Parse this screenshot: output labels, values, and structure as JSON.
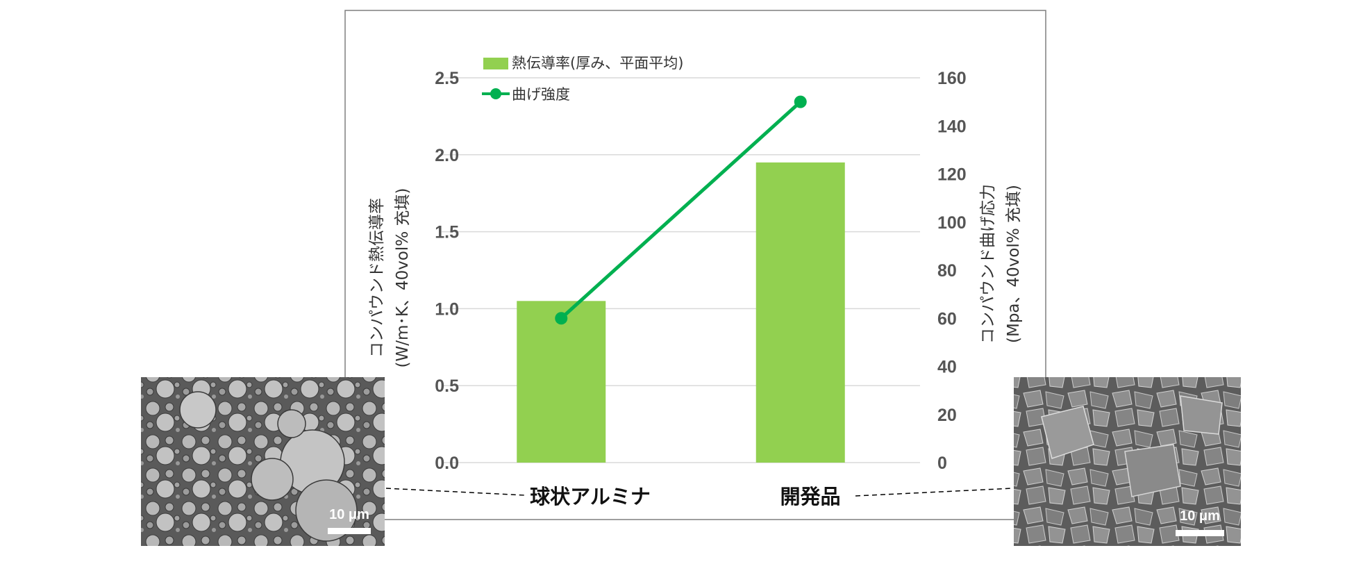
{
  "chart_data": {
    "type": "bar+line",
    "categories": [
      "球状アルミナ",
      "開発品"
    ],
    "series": [
      {
        "name": "熱伝導率(厚み、平面平均)",
        "kind": "bar",
        "axis": "left",
        "values": [
          1.05,
          1.95
        ]
      },
      {
        "name": "曲げ強度",
        "kind": "line",
        "axis": "right",
        "values": [
          60,
          150
        ]
      }
    ],
    "left_axis": {
      "label_line1": "コンパウンド熱伝導率",
      "label_line2": "(W/m･K、40vol% 充填)",
      "ylim": [
        0,
        2.5
      ],
      "ticks": [
        "0.0",
        "0.5",
        "1.0",
        "1.5",
        "2.0",
        "2.5"
      ]
    },
    "right_axis": {
      "label_line1": "コンパウンド曲げ応力",
      "label_line2": "(Mpa、40vol% 充填)",
      "ylim": [
        0,
        160
      ],
      "ticks": [
        "0",
        "20",
        "40",
        "60",
        "80",
        "100",
        "120",
        "140",
        "160"
      ]
    },
    "grid": true,
    "legend_position": "top-left"
  },
  "images": {
    "left_scale_label": "10 μm",
    "right_scale_label": "10 μm"
  },
  "colors": {
    "bar": "#92d050",
    "line": "#00b050",
    "grid": "#d9d9d9",
    "frame": "#7f7f7f"
  }
}
